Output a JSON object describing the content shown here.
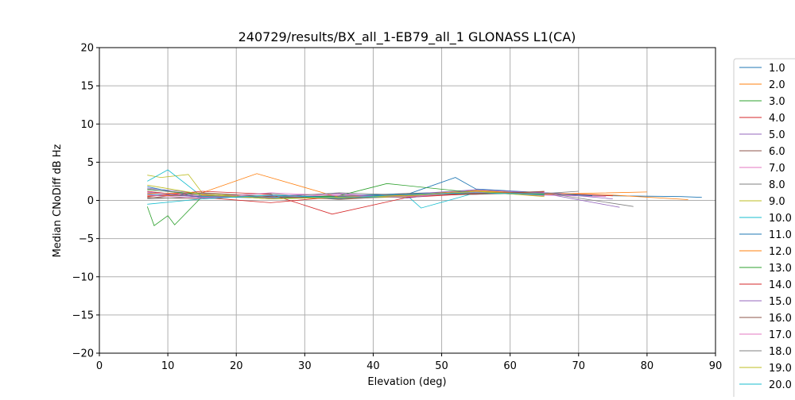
{
  "chart_data": {
    "type": "line",
    "title": "240729/results/BX_all_1-EB79_all_1 GLONASS L1(CA)",
    "xlabel": "Elevation (deg)",
    "ylabel": "Median CNoDiff dB Hz",
    "xlim": [
      0,
      90
    ],
    "ylim": [
      -20,
      20
    ],
    "xticks": [
      0,
      10,
      20,
      30,
      40,
      50,
      60,
      70,
      80,
      90
    ],
    "yticks": [
      -20,
      -15,
      -10,
      -5,
      0,
      5,
      10,
      15,
      20
    ],
    "grid": true,
    "legend_position": "right",
    "series": [
      {
        "name": "1.0",
        "color": "#1f77b4",
        "x": [
          7,
          15,
          25,
          35,
          45,
          55,
          65,
          75,
          85,
          88
        ],
        "y": [
          0.8,
          0.5,
          0.3,
          0.6,
          0.9,
          1.2,
          0.8,
          0.6,
          0.5,
          0.4
        ]
      },
      {
        "name": "2.0",
        "color": "#ff7f0e",
        "x": [
          7,
          15,
          25,
          35,
          45,
          55,
          65,
          75,
          86
        ],
        "y": [
          0.6,
          0.7,
          0.4,
          0.2,
          0.5,
          1.0,
          0.9,
          0.7,
          0.1
        ]
      },
      {
        "name": "3.0",
        "color": "#2ca02c",
        "x": [
          7,
          8,
          10,
          11,
          15,
          25,
          35,
          45,
          55,
          65
        ],
        "y": [
          -0.8,
          -3.3,
          -2.0,
          -3.2,
          0.5,
          0.4,
          0.6,
          0.7,
          1.1,
          0.8
        ]
      },
      {
        "name": "4.0",
        "color": "#d62728",
        "x": [
          7,
          15,
          25,
          35,
          45,
          55,
          65,
          75
        ],
        "y": [
          1.2,
          0.4,
          -0.3,
          0.5,
          0.6,
          0.9,
          1.0,
          0.6
        ]
      },
      {
        "name": "5.0",
        "color": "#9467bd",
        "x": [
          7,
          15,
          25,
          35,
          45,
          55,
          65,
          76
        ],
        "y": [
          1.6,
          0.9,
          0.5,
          0.4,
          0.8,
          1.4,
          0.9,
          -0.9
        ]
      },
      {
        "name": "6.0",
        "color": "#8c564b",
        "x": [
          7,
          15,
          25,
          35,
          45,
          55,
          65
        ],
        "y": [
          0.4,
          0.2,
          0.7,
          0.3,
          0.5,
          1.2,
          0.8
        ]
      },
      {
        "name": "7.0",
        "color": "#e377c2",
        "x": [
          7,
          15,
          25,
          35,
          45,
          55,
          65,
          74
        ],
        "y": [
          1.0,
          0.6,
          0.3,
          0.8,
          0.4,
          1.1,
          0.7,
          0.5
        ]
      },
      {
        "name": "8.0",
        "color": "#7f7f7f",
        "x": [
          7,
          15,
          25,
          35,
          45,
          55,
          65,
          78
        ],
        "y": [
          0.2,
          0.5,
          0.9,
          0.1,
          0.6,
          0.8,
          1.0,
          -0.8
        ]
      },
      {
        "name": "9.0",
        "color": "#bcbd22",
        "x": [
          7,
          9,
          13,
          15,
          25,
          35,
          45,
          55,
          65
        ],
        "y": [
          3.3,
          3.0,
          3.4,
          1.0,
          0.2,
          0.5,
          0.4,
          1.2,
          0.9
        ]
      },
      {
        "name": "10.0",
        "color": "#17becf",
        "x": [
          7,
          10,
          15,
          25,
          35,
          45,
          47,
          55,
          65
        ],
        "y": [
          2.5,
          4.0,
          0.5,
          0.4,
          0.3,
          0.6,
          -1.0,
          1.0,
          0.7
        ]
      },
      {
        "name": "11.0",
        "color": "#1f77b4",
        "x": [
          7,
          15,
          25,
          35,
          45,
          52,
          55,
          65,
          72
        ],
        "y": [
          1.8,
          0.3,
          0.6,
          0.5,
          0.8,
          3.0,
          1.5,
          1.0,
          0.6
        ]
      },
      {
        "name": "12.0",
        "color": "#ff7f0e",
        "x": [
          7,
          15,
          23,
          35,
          45,
          55,
          65,
          80
        ],
        "y": [
          0.9,
          1.0,
          3.5,
          0.4,
          0.7,
          1.3,
          0.8,
          1.1
        ]
      },
      {
        "name": "13.0",
        "color": "#2ca02c",
        "x": [
          7,
          15,
          25,
          35,
          42,
          55,
          65
        ],
        "y": [
          1.4,
          0.8,
          0.2,
          0.6,
          2.2,
          1.0,
          0.7
        ]
      },
      {
        "name": "14.0",
        "color": "#d62728",
        "x": [
          7,
          15,
          25,
          34,
          45,
          55,
          65
        ],
        "y": [
          0.5,
          1.2,
          0.8,
          -1.8,
          0.4,
          0.9,
          1.1
        ]
      },
      {
        "name": "15.0",
        "color": "#9467bd",
        "x": [
          7,
          15,
          25,
          35,
          45,
          55,
          65,
          75
        ],
        "y": [
          1.1,
          0.4,
          0.6,
          0.9,
          0.3,
          1.4,
          1.0,
          0.2
        ]
      },
      {
        "name": "16.0",
        "color": "#8c564b",
        "x": [
          7,
          15,
          25,
          35,
          45,
          55,
          65
        ],
        "y": [
          0.3,
          1.0,
          0.5,
          0.2,
          0.9,
          0.8,
          1.2
        ]
      },
      {
        "name": "17.0",
        "color": "#e377c2",
        "x": [
          7,
          15,
          25,
          35,
          45,
          55,
          65
        ],
        "y": [
          0.7,
          0.3,
          1.0,
          0.6,
          0.5,
          1.1,
          0.6
        ]
      },
      {
        "name": "18.0",
        "color": "#7f7f7f",
        "x": [
          7,
          15,
          25,
          35,
          45,
          55,
          65,
          70
        ],
        "y": [
          1.5,
          0.6,
          0.4,
          1.0,
          0.7,
          1.0,
          0.9,
          1.2
        ]
      },
      {
        "name": "19.0",
        "color": "#bcbd22",
        "x": [
          7,
          15,
          25,
          35,
          45,
          55,
          65
        ],
        "y": [
          2.0,
          0.8,
          0.2,
          0.4,
          0.6,
          1.2,
          0.5
        ]
      },
      {
        "name": "20.0",
        "color": "#17becf",
        "x": [
          7,
          15,
          25,
          35,
          45,
          55,
          65
        ],
        "y": [
          -0.5,
          0.2,
          0.7,
          0.3,
          0.8,
          1.0,
          0.8
        ]
      }
    ]
  }
}
